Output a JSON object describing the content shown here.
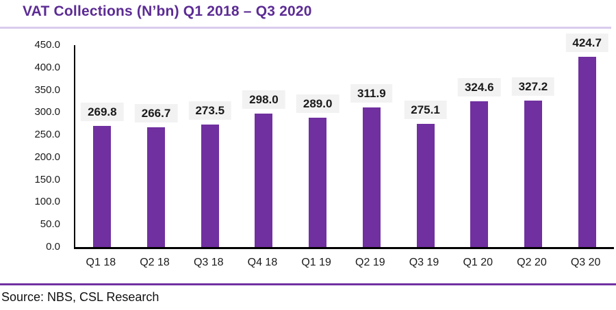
{
  "page": {
    "title": "VAT Collections (N’bn) Q1 2018 – Q3 2020",
    "source": "Source: NBS, CSL Research"
  },
  "colors": {
    "bar": "#7030A0",
    "title": "#5C2B94",
    "title_underline": "#D9CBEE",
    "footer_rule": "#7030A0",
    "value_label_bg": "#F2F2F2",
    "axis": "#000000"
  },
  "chart_data": {
    "type": "bar",
    "title": "VAT Collections (N’bn) Q1 2018 – Q3 2020",
    "categories": [
      "Q1 18",
      "Q2 18",
      "Q3 18",
      "Q4 18",
      "Q1 19",
      "Q2 19",
      "Q3 19",
      "Q1 20",
      "Q2 20",
      "Q3 20"
    ],
    "values": [
      269.8,
      266.7,
      273.5,
      298.0,
      289.0,
      311.9,
      275.1,
      324.6,
      327.2,
      424.7
    ],
    "value_labels": [
      "269.8",
      "266.7",
      "273.5",
      "298.0",
      "289.0",
      "311.9",
      "275.1",
      "324.6",
      "327.2",
      "424.7"
    ],
    "xlabel": "",
    "ylabel": "",
    "ylim": [
      0,
      450
    ],
    "yticks": [
      0,
      50,
      100,
      150,
      200,
      250,
      300,
      350,
      400,
      450
    ],
    "ytick_labels": [
      "0.0",
      "50.0",
      "100.0",
      "150.0",
      "200.0",
      "250.0",
      "300.0",
      "350.0",
      "400.0",
      "450.0"
    ],
    "grid": false,
    "legend": null,
    "bar_color": "#7030A0",
    "source": "Source: NBS, CSL Research"
  }
}
